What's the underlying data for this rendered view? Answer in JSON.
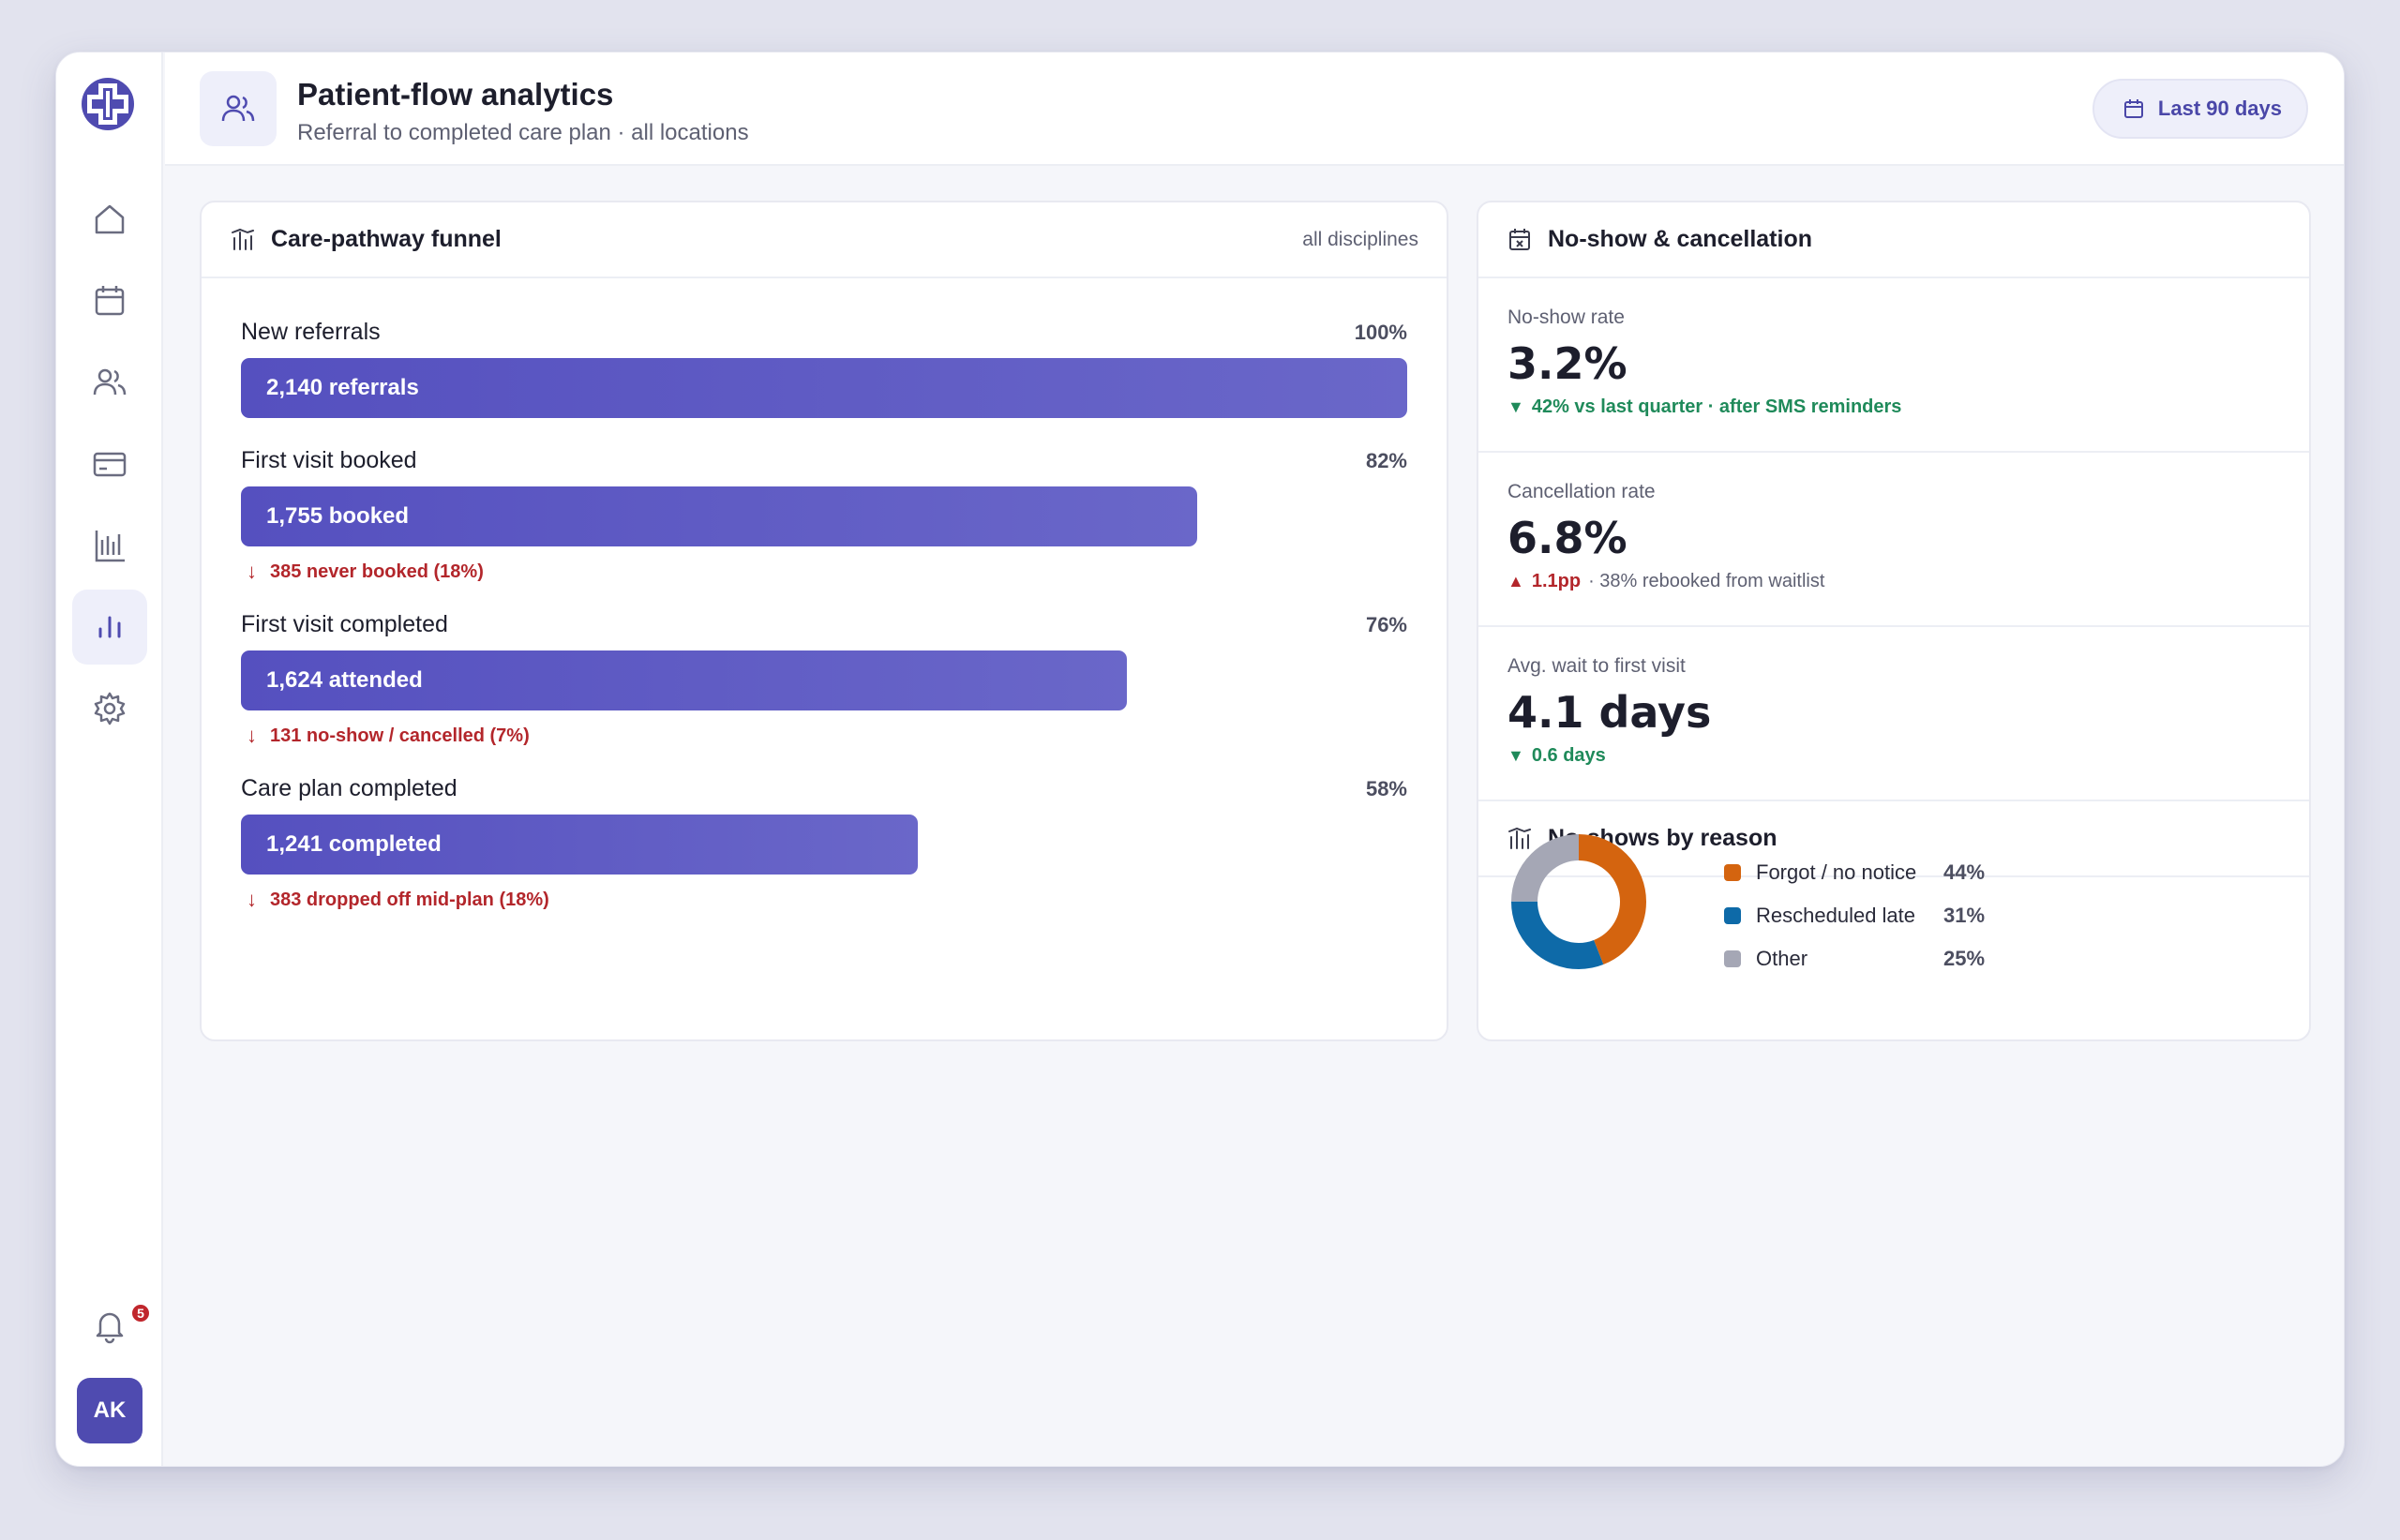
{
  "header": {
    "title": "Patient-flow analytics",
    "subtitle": "Referral to completed care plan · all locations",
    "range_label": "Last 90 days"
  },
  "sidebar": {
    "items": [
      {
        "icon": "home-icon"
      },
      {
        "icon": "calendar-icon"
      },
      {
        "icon": "users-icon"
      },
      {
        "icon": "credit-card-icon"
      },
      {
        "icon": "reports-icon"
      },
      {
        "icon": "analytics-icon",
        "active": true
      },
      {
        "icon": "settings-icon"
      }
    ],
    "notification_count": "5",
    "avatar_initials": "AK"
  },
  "funnel": {
    "title": "Care-pathway funnel",
    "meta": "all disciplines",
    "stages": [
      {
        "name": "New referrals",
        "pct": "100%",
        "bar_label": "2,140 referrals",
        "fraction": 1.0,
        "drop": ""
      },
      {
        "name": "First visit booked",
        "pct": "82%",
        "bar_label": "1,755 booked",
        "fraction": 0.82,
        "drop": "385 never booked (18%)"
      },
      {
        "name": "First visit completed",
        "pct": "76%",
        "bar_label": "1,624 attended",
        "fraction": 0.76,
        "drop": "131 no-show / cancelled (7%)"
      },
      {
        "name": "Care plan completed",
        "pct": "58%",
        "bar_label": "1,241 completed",
        "fraction": 0.58,
        "drop": "383 dropped off mid-plan (18%)"
      }
    ]
  },
  "noshow": {
    "title": "No-show & cancellation",
    "metrics": [
      {
        "label": "No-show rate",
        "value": "3.2%",
        "delta": "42% vs last quarter · after SMS reminders",
        "delta_note": "",
        "trend": "down-good"
      },
      {
        "label": "Cancellation rate",
        "value": "6.8%",
        "delta": "1.1pp",
        "delta_note": "· 38% rebooked from waitlist",
        "trend": "up-bad"
      },
      {
        "label": "Avg. wait to first visit",
        "value": "4.1 days",
        "delta": "0.6 days",
        "delta_note": "",
        "trend": "down-good"
      }
    ],
    "reasons_title": "No-shows by reason",
    "reasons": [
      {
        "label": "Forgot / no notice",
        "value": "44%",
        "fraction": 0.44,
        "color": "#d4640f"
      },
      {
        "label": "Rescheduled late",
        "value": "31%",
        "fraction": 0.31,
        "color": "#0e6aa8"
      },
      {
        "label": "Other",
        "value": "25%",
        "fraction": 0.25,
        "color": "#a5a7b5"
      }
    ]
  },
  "colors": {
    "accent": "#5550bf",
    "good": "#1f8a5a",
    "bad": "#b3262b"
  }
}
